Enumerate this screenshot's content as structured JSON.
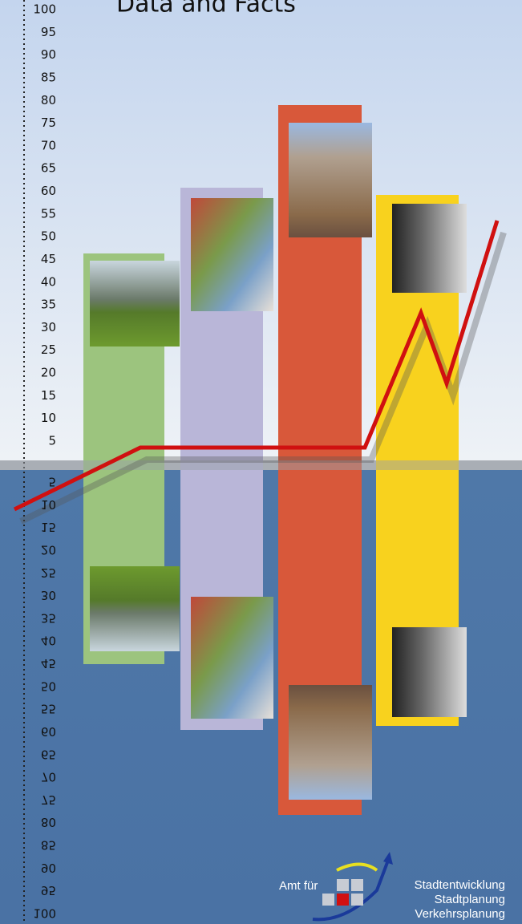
{
  "header": {
    "title": "Data and Facts"
  },
  "scale": {
    "upper": [
      "100",
      "95",
      "90",
      "85",
      "80",
      "75",
      "70",
      "65",
      "60",
      "55",
      "50",
      "45",
      "40",
      "35",
      "30",
      "25",
      "20",
      "15",
      "10",
      "5"
    ],
    "lower": [
      "5",
      "10",
      "15",
      "20",
      "25",
      "30",
      "35",
      "40",
      "45",
      "50",
      "55",
      "60",
      "65",
      "70",
      "75",
      "80",
      "85",
      "90",
      "95",
      "100"
    ]
  },
  "logo": {
    "prefix": "Amt für",
    "lines": [
      "Stadtentwicklung",
      "Stadtplanung",
      "Verkehrsplanung"
    ]
  }
}
